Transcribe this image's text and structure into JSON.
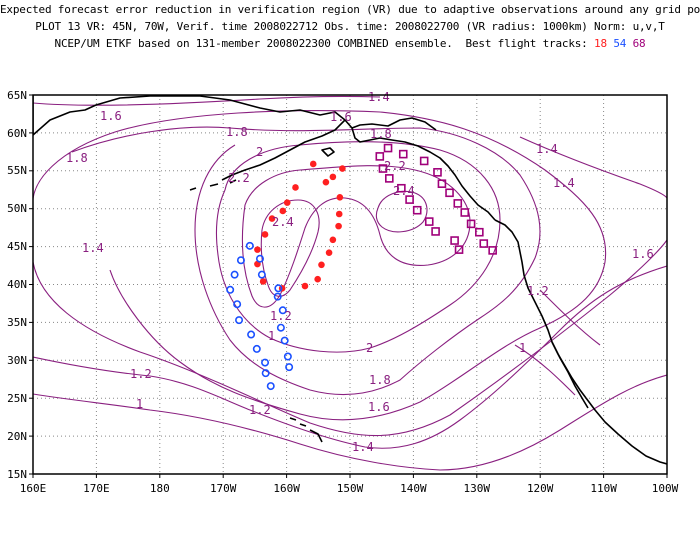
{
  "title": {
    "line1": "Expected forecast error reduction in verification region (VR) due to adaptive observations around any grid point.",
    "line2": "PLOT 13 VR: 45N, 70W, Verif. time 2008022712 Obs. time: 2008022700 (VR radius: 1000km) Norm: u,v,T",
    "line3_prefix": "NCEP/UM ETKF based on 131-member 2008022300 COMBINED ensemble.  Best flight tracks:",
    "track_ids": [
      "18",
      "54",
      "68"
    ]
  },
  "colors": {
    "contour": "#8a2080",
    "track_red": "#ff2020",
    "track_blue": "#1a50ff",
    "track_purple": "#a0007a",
    "coast": "#000000"
  },
  "map": {
    "lon_range": [
      160,
      260
    ],
    "lat_range": [
      15,
      65
    ],
    "xticks": [
      "160E",
      "170E",
      "180",
      "170W",
      "160W",
      "150W",
      "140W",
      "130W",
      "120W",
      "110W",
      "100W"
    ],
    "yticks": [
      "15N",
      "20N",
      "25N",
      "30N",
      "35N",
      "40N",
      "45N",
      "50N",
      "55N",
      "60N",
      "65N"
    ],
    "contour_labels": [
      "1.6",
      "1.6",
      "1.4",
      "1.8",
      "1.8",
      "1.8",
      "2",
      "2.2",
      "2.2",
      "2.4",
      "2.4",
      "1.4",
      "1.4",
      "1.6",
      "1.4",
      "1.2",
      "1.2",
      "1",
      "1.2",
      "1",
      "2",
      "1.8",
      "1.6",
      "1.4",
      "1.2",
      "1"
    ],
    "tracks": [
      {
        "id": "18",
        "color": "track_red",
        "points": [
          [
            -155.8,
            55.9
          ],
          [
            -152.7,
            54.2
          ],
          [
            -151.2,
            55.3
          ],
          [
            -153.8,
            53.5
          ],
          [
            -158.6,
            52.8
          ],
          [
            -159.9,
            50.8
          ],
          [
            -151.6,
            51.5
          ],
          [
            -160.6,
            49.7
          ],
          [
            -151.7,
            49.3
          ],
          [
            -162.3,
            48.7
          ],
          [
            -151.8,
            47.7
          ],
          [
            -163.4,
            46.6
          ],
          [
            -152.7,
            45.9
          ],
          [
            -164.6,
            44.6
          ],
          [
            -153.3,
            44.2
          ],
          [
            -164.6,
            42.7
          ],
          [
            -154.5,
            42.6
          ],
          [
            -163.7,
            40.4
          ],
          [
            -155.1,
            40.7
          ],
          [
            -160.7,
            39.5
          ],
          [
            -157.1,
            39.8
          ]
        ]
      },
      {
        "id": "54",
        "color": "track_blue",
        "points": [
          [
            -165.8,
            45.1
          ],
          [
            -167.2,
            43.2
          ],
          [
            -164.2,
            43.4
          ],
          [
            -168.2,
            41.3
          ],
          [
            -163.9,
            41.3
          ],
          [
            -168.9,
            39.3
          ],
          [
            -161.3,
            39.5
          ],
          [
            -167.8,
            37.4
          ],
          [
            -161.4,
            38.4
          ],
          [
            -167.5,
            35.3
          ],
          [
            -160.6,
            36.6
          ],
          [
            -165.6,
            33.4
          ],
          [
            -160.9,
            34.3
          ],
          [
            -164.7,
            31.5
          ],
          [
            -160.3,
            32.6
          ],
          [
            -163.4,
            29.7
          ],
          [
            -159.8,
            30.5
          ],
          [
            -163.3,
            28.3
          ],
          [
            -159.6,
            29.1
          ],
          [
            -162.5,
            26.6
          ]
        ]
      },
      {
        "id": "68",
        "color": "track_purple",
        "points": [
          [
            -145.3,
            56.9
          ],
          [
            -144.0,
            58.0
          ],
          [
            -141.6,
            57.2
          ],
          [
            -138.3,
            56.3
          ],
          [
            -144.8,
            55.3
          ],
          [
            -136.2,
            54.8
          ],
          [
            -143.8,
            54.0
          ],
          [
            -135.5,
            53.3
          ],
          [
            -141.9,
            52.7
          ],
          [
            -134.3,
            52.1
          ],
          [
            -140.6,
            51.2
          ],
          [
            -133.0,
            50.7
          ],
          [
            -139.4,
            49.8
          ],
          [
            -131.9,
            49.5
          ],
          [
            -137.5,
            48.3
          ],
          [
            -130.9,
            48.0
          ],
          [
            -136.5,
            47.0
          ],
          [
            -129.6,
            46.9
          ],
          [
            -133.5,
            45.8
          ],
          [
            -128.9,
            45.4
          ],
          [
            -132.8,
            44.6
          ],
          [
            -127.5,
            44.5
          ]
        ]
      }
    ]
  }
}
